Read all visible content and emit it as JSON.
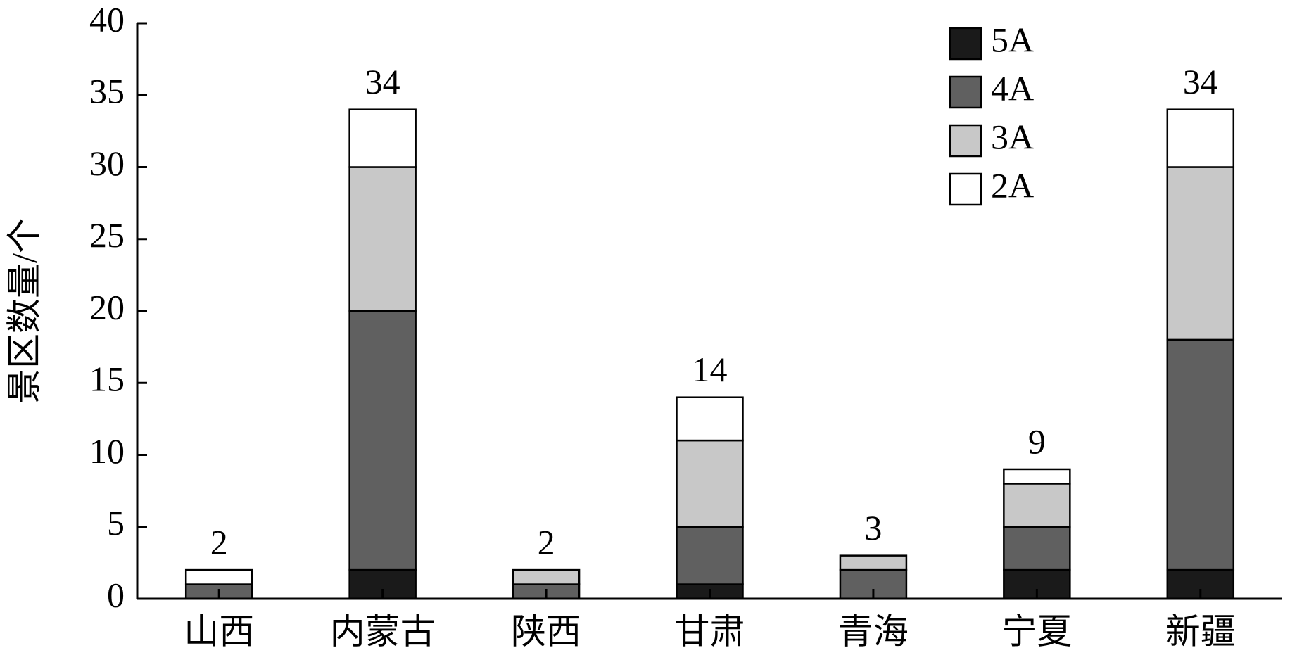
{
  "chart_data": {
    "type": "stacked-bar",
    "y_label": "景区数量/个",
    "categories": [
      "山西",
      "内蒙古",
      "陕西",
      "甘肃",
      "青海",
      "宁夏",
      "新疆"
    ],
    "series": [
      {
        "name": "5A",
        "color": "#1a1a1a",
        "values": [
          0,
          2,
          0,
          1,
          0,
          2,
          2
        ]
      },
      {
        "name": "4A",
        "color": "#606060",
        "values": [
          1,
          18,
          1,
          4,
          2,
          3,
          16
        ]
      },
      {
        "name": "3A",
        "color": "#c8c8c8",
        "values": [
          0,
          10,
          1,
          6,
          1,
          3,
          12
        ]
      },
      {
        "name": "2A",
        "color": "#ffffff",
        "values": [
          1,
          4,
          0,
          3,
          0,
          1,
          4
        ]
      }
    ],
    "totals": [
      2,
      34,
      2,
      14,
      3,
      9,
      34
    ],
    "ylim": [
      0,
      40
    ],
    "yticks": [
      0,
      5,
      10,
      15,
      20,
      25,
      30,
      35,
      40
    ],
    "legend": "upper-right"
  }
}
